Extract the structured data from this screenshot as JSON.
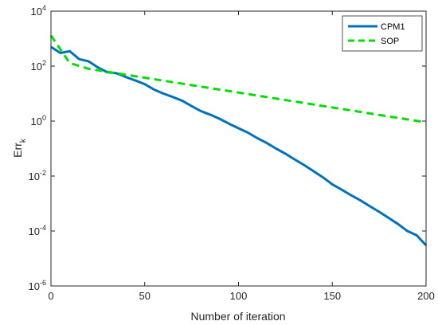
{
  "chart_data": {
    "type": "line",
    "title": "",
    "xlabel": "Number of iteration",
    "ylabel": "Err",
    "ylabel_subscript": "k",
    "xlim": [
      0,
      200
    ],
    "ylim": [
      1e-06,
      10000.0
    ],
    "yscale": "log",
    "grid": false,
    "legend_position": "top-right",
    "xticks": [
      "0",
      "50",
      "100",
      "150",
      "200"
    ],
    "yticks": [
      {
        "base": "10",
        "exp": "4"
      },
      {
        "base": "10",
        "exp": "2"
      },
      {
        "base": "10",
        "exp": "0"
      },
      {
        "base": "10",
        "exp": "-2"
      },
      {
        "base": "10",
        "exp": "-4"
      },
      {
        "base": "10",
        "exp": "-6"
      }
    ],
    "series": [
      {
        "name": "CPM1",
        "color": "#0072BD",
        "style": "solid",
        "x": [
          0,
          5,
          10,
          15,
          20,
          25,
          30,
          35,
          40,
          45,
          50,
          55,
          60,
          65,
          70,
          75,
          80,
          85,
          90,
          95,
          100,
          105,
          110,
          115,
          120,
          125,
          130,
          135,
          140,
          145,
          150,
          155,
          160,
          165,
          170,
          175,
          180,
          185,
          190,
          195,
          200
        ],
        "y": [
          500,
          300,
          350,
          180,
          150,
          90,
          60,
          55,
          40,
          30,
          22,
          14,
          10,
          7.5,
          5.5,
          3.5,
          2.3,
          1.7,
          1.2,
          0.8,
          0.55,
          0.38,
          0.24,
          0.16,
          0.1,
          0.065,
          0.04,
          0.025,
          0.015,
          0.009,
          0.005,
          0.0032,
          0.002,
          0.0013,
          0.0008,
          0.0005,
          0.0003,
          0.00018,
          0.0001,
          7e-05,
          3e-05
        ]
      },
      {
        "name": "SOP",
        "color": "#00E000",
        "style": "dashed",
        "x": [
          0,
          10,
          20,
          200
        ],
        "y": [
          1300,
          130,
          80,
          0.9
        ]
      }
    ]
  }
}
